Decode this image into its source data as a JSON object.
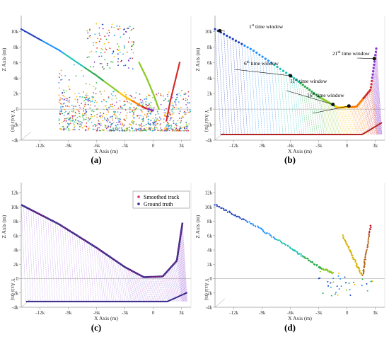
{
  "chart_data": [
    {
      "type": "scatter",
      "panel": "(a)",
      "xlabel": "X Axis (m)",
      "ylabel": "Z Axis (m)",
      "depth_label": "Y Axis (m)",
      "x_ticks": [
        "-12k",
        "-9k",
        "-6k",
        "-3k",
        "0",
        "3k"
      ],
      "z_ticks": [
        "10k",
        "8k",
        "6k",
        "4k",
        "2k",
        "0",
        "-2k",
        "-4k"
      ],
      "xlim": [
        -14000,
        4000
      ],
      "zlim": [
        -4000,
        11000
      ],
      "series": [
        {
          "values": [
            [
              -14000,
              10300
            ],
            [
              -10000,
              7600
            ],
            [
              -6000,
              4300
            ],
            [
              -3000,
              1600
            ],
            [
              -1000,
              200
            ],
            [
              0,
              -200
            ]
          ]
        },
        {
          "values": [
            [
              -1500,
              6000
            ],
            [
              -700,
              4000
            ],
            [
              0,
              2000
            ],
            [
              600,
              0
            ]
          ]
        },
        {
          "values": [
            [
              2800,
              6000
            ],
            [
              2300,
              3500
            ],
            [
              1800,
              1000
            ],
            [
              1400,
              -1500
            ]
          ]
        }
      ]
    },
    {
      "type": "line",
      "panel": "(b)",
      "xlabel": "X Axis (m)",
      "ylabel": "Z Axis (m)",
      "depth_label": "Y Axis (m)",
      "x_ticks": [
        "-12k",
        "-9k",
        "-6k",
        "-3k",
        "0",
        "3k"
      ],
      "z_ticks": [
        "10k",
        "8k",
        "6k",
        "4k",
        "2k",
        "0",
        "-2k",
        "-4k"
      ],
      "annotations": [
        {
          "text": "1",
          "sup": "st",
          "rest": " time window"
        },
        {
          "text": "6",
          "sup": "th",
          "rest": " time window"
        },
        {
          "text": "11",
          "sup": "th",
          "rest": " time window"
        },
        {
          "text": "16",
          "sup": "th",
          "rest": " time window"
        },
        {
          "text": "21",
          "sup": "th",
          "rest": " time window"
        }
      ],
      "series": [
        {
          "values": [
            [
              -14000,
              10300
            ],
            [
              -10000,
              7600
            ],
            [
              -6000,
              4300
            ],
            [
              -3000,
              1600
            ],
            [
              -1000,
              200
            ],
            [
              1000,
              300
            ],
            [
              2500,
              2500
            ],
            [
              3100,
              7800
            ]
          ]
        }
      ]
    },
    {
      "type": "line",
      "panel": "(c)",
      "xlabel": "X Axis (m)",
      "ylabel": "Z Axis (m)",
      "depth_label": "Y Axis (m)",
      "x_ticks": [
        "-12k",
        "-9k",
        "-6k",
        "-3k",
        "0",
        "3k"
      ],
      "z_ticks": [
        "12k",
        "10k",
        "8k",
        "6k",
        "4k",
        "2k",
        "0",
        "-2k",
        "-4k"
      ],
      "legend": {
        "position": "top-right",
        "items": [
          "Smoothed track",
          "Ground truth"
        ]
      },
      "series": [
        {
          "name": "Smoothed track",
          "values": [
            [
              -14000,
              10300
            ],
            [
              -10000,
              7600
            ],
            [
              -6000,
              4300
            ],
            [
              -3000,
              1600
            ],
            [
              -1000,
              200
            ],
            [
              1000,
              300
            ],
            [
              2500,
              2500
            ],
            [
              3100,
              7800
            ]
          ]
        },
        {
          "name": "Ground truth",
          "values": [
            [
              -14000,
              10300
            ],
            [
              -10000,
              7600
            ],
            [
              -6000,
              4300
            ],
            [
              -3000,
              1600
            ],
            [
              -1000,
              200
            ],
            [
              1000,
              300
            ],
            [
              2500,
              2500
            ],
            [
              3100,
              7800
            ]
          ]
        }
      ]
    },
    {
      "type": "scatter",
      "panel": "(d)",
      "xlabel": "X Axis (m)",
      "ylabel": "Z Axis (m)",
      "depth_label": "Y Axis (m)",
      "x_ticks": [
        "-12k",
        "-9k",
        "-6k",
        "-3k",
        "0",
        "3k"
      ],
      "z_ticks": [
        "12k",
        "10k",
        "8k",
        "6k",
        "4k",
        "2k",
        "0",
        "-2k",
        "-4k"
      ],
      "series": [
        {
          "values": [
            [
              -14000,
              10300
            ],
            [
              -10000,
              7600
            ],
            [
              -6000,
              4300
            ],
            [
              -3000,
              1600
            ],
            [
              -1500,
              800
            ]
          ]
        },
        {
          "values": [
            [
              -500,
              6000
            ],
            [
              300,
              4000
            ],
            [
              1000,
              2000
            ],
            [
              1600,
              500
            ]
          ]
        },
        {
          "values": [
            [
              2500,
              7500
            ],
            [
              2200,
              5000
            ],
            [
              1900,
              2500
            ],
            [
              1700,
              500
            ]
          ]
        }
      ]
    }
  ],
  "colors": {
    "spectrum": [
      "#1f3fbf",
      "#1e90ff",
      "#17c0b0",
      "#22aa44",
      "#8ac926",
      "#ffbf00",
      "#ff7b00",
      "#d62828",
      "#8b2fc9"
    ],
    "smoothed": "#e0317a",
    "truth": "#3a2a8c",
    "axis": "#9a9a9a"
  }
}
